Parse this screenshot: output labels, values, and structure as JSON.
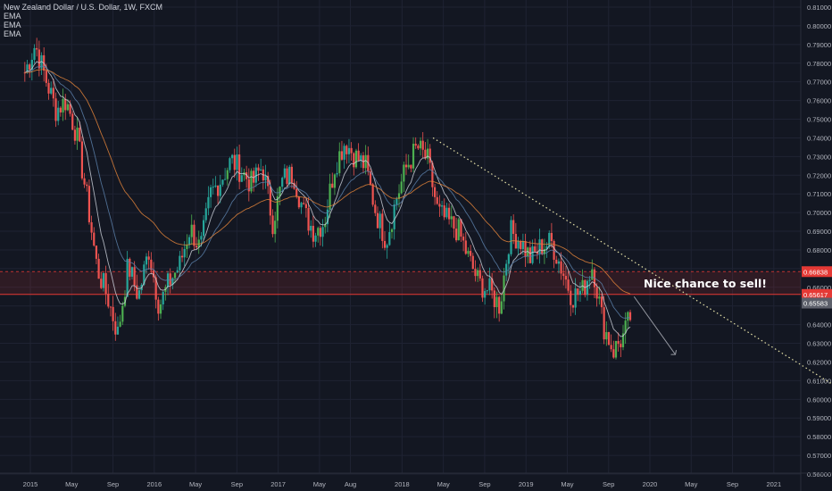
{
  "header": {
    "symbol_title": "New Zealand Dollar / U.S. Dollar, 1W, FXCM",
    "indicators": [
      "EMA",
      "EMA",
      "EMA"
    ]
  },
  "annotation": {
    "text": "Nice chance to sell!"
  },
  "colors": {
    "background": "#131722",
    "grid": "#1f2333",
    "axis_text": "#b2b5be",
    "candle_up": "#26a69a",
    "candle_up_bright": "#4caf50",
    "candle_down": "#ef5350",
    "ema_fast": "#c8ccd6",
    "ema_mid": "#5b7fa8",
    "ema_slow": "#e0823a",
    "resistance_zone": "#e53935",
    "trendline": "#e6e2a8",
    "price_badge_red": "#e53935",
    "price_badge_gray": "#5d606b"
  },
  "chart_data": {
    "type": "candlestick",
    "title": "New Zealand Dollar / U.S. Dollar, 1W, FXCM",
    "ylim": [
      0.56,
      0.81
    ],
    "y_ticks": [
      "0.81000",
      "0.80000",
      "0.79000",
      "0.78000",
      "0.77000",
      "0.76000",
      "0.75000",
      "0.74000",
      "0.73000",
      "0.72000",
      "0.71000",
      "0.70000",
      "0.69000",
      "0.68000",
      "0.67000",
      "0.66000",
      "0.65000",
      "0.64000",
      "0.63000",
      "0.62000",
      "0.61000",
      "0.60000",
      "0.59000",
      "0.58000",
      "0.57000",
      "0.56000"
    ],
    "x_ticks": [
      "2015",
      "May",
      "Sep",
      "2016",
      "May",
      "Sep",
      "2017",
      "May",
      "Aug",
      "2018",
      "May",
      "Sep",
      "2019",
      "May",
      "Sep",
      "2020",
      "May",
      "Sep",
      "2021"
    ],
    "price_labels": [
      {
        "value": "0.66838",
        "style": "red-badge"
      },
      {
        "value": "0.65617",
        "style": "red-badge"
      },
      {
        "value": "0.65583",
        "style": "gray-badge"
      }
    ],
    "resistance_zone": [
      0.6562,
      0.6684
    ],
    "trendline": {
      "from": [
        "2018-04",
        0.74
      ],
      "to": [
        "2021-09",
        0.595
      ],
      "style": "dotted"
    },
    "projection_arrow": {
      "from": [
        "2019-11",
        0.655
      ],
      "to": [
        "2020-03",
        0.624
      ]
    },
    "anchor_points": [
      [
        "2014-12",
        0.775
      ],
      [
        "2015-01",
        0.79
      ],
      [
        "2015-02",
        0.772
      ],
      [
        "2015-03",
        0.755
      ],
      [
        "2015-04",
        0.76
      ],
      [
        "2015-05",
        0.742
      ],
      [
        "2015-06",
        0.708
      ],
      [
        "2015-07",
        0.67
      ],
      [
        "2015-08",
        0.655
      ],
      [
        "2015-09",
        0.635
      ],
      [
        "2015-10",
        0.672
      ],
      [
        "2015-11",
        0.655
      ],
      [
        "2015-12",
        0.68
      ],
      [
        "2016-01",
        0.65
      ],
      [
        "2016-02",
        0.663
      ],
      [
        "2016-03",
        0.672
      ],
      [
        "2016-04",
        0.692
      ],
      [
        "2016-05",
        0.68
      ],
      [
        "2016-06",
        0.71
      ],
      [
        "2016-07",
        0.718
      ],
      [
        "2016-08",
        0.728
      ],
      [
        "2016-09",
        0.722
      ],
      [
        "2016-10",
        0.715
      ],
      [
        "2016-11",
        0.725
      ],
      [
        "2016-12",
        0.695
      ],
      [
        "2017-01",
        0.718
      ],
      [
        "2017-02",
        0.721
      ],
      [
        "2017-03",
        0.7
      ],
      [
        "2017-04",
        0.69
      ],
      [
        "2017-05",
        0.695
      ],
      [
        "2017-06",
        0.725
      ],
      [
        "2017-07",
        0.738
      ],
      [
        "2017-08",
        0.73
      ],
      [
        "2017-09",
        0.725
      ],
      [
        "2017-10",
        0.7
      ],
      [
        "2017-11",
        0.685
      ],
      [
        "2017-12",
        0.708
      ],
      [
        "2018-01",
        0.725
      ],
      [
        "2018-02",
        0.735
      ],
      [
        "2018-03",
        0.728
      ],
      [
        "2018-04",
        0.7
      ],
      [
        "2018-05",
        0.695
      ],
      [
        "2018-06",
        0.69
      ],
      [
        "2018-07",
        0.675
      ],
      [
        "2018-08",
        0.662
      ],
      [
        "2018-09",
        0.658
      ],
      [
        "2018-10",
        0.65
      ],
      [
        "2018-11",
        0.69
      ],
      [
        "2018-12",
        0.685
      ],
      [
        "2019-01",
        0.675
      ],
      [
        "2019-02",
        0.682
      ],
      [
        "2019-03",
        0.684
      ],
      [
        "2019-04",
        0.67
      ],
      [
        "2019-05",
        0.655
      ],
      [
        "2019-06",
        0.658
      ],
      [
        "2019-07",
        0.672
      ],
      [
        "2019-08",
        0.64
      ],
      [
        "2019-09",
        0.626
      ],
      [
        "2019-10",
        0.634
      ],
      [
        "2019-11",
        0.65
      ],
      [
        "2019-11-08",
        0.656
      ]
    ]
  }
}
